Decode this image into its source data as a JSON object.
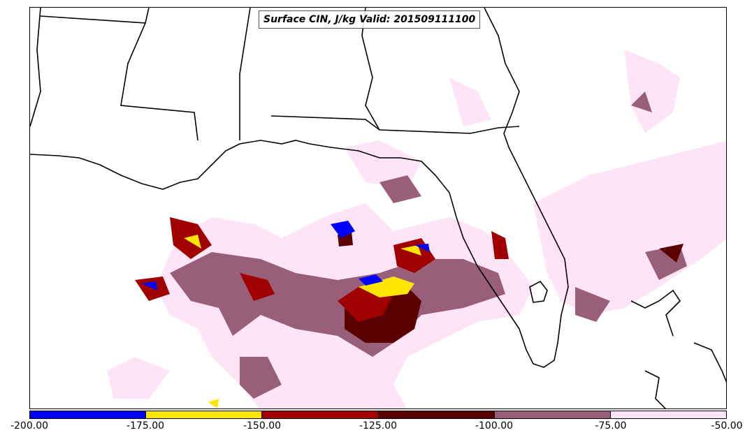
{
  "title": "Surface CIN, J/kg Valid: 201509111100",
  "colorbar": {
    "ticks": [
      "-200.00",
      "-175.00",
      "-150.00",
      "-125.00",
      "-100.00",
      "-75.00",
      "-50.00"
    ],
    "colors": [
      "#0000ff",
      "#ffe600",
      "#a00000",
      "#5a0000",
      "#9a5f78",
      "#fde4f6"
    ]
  }
}
